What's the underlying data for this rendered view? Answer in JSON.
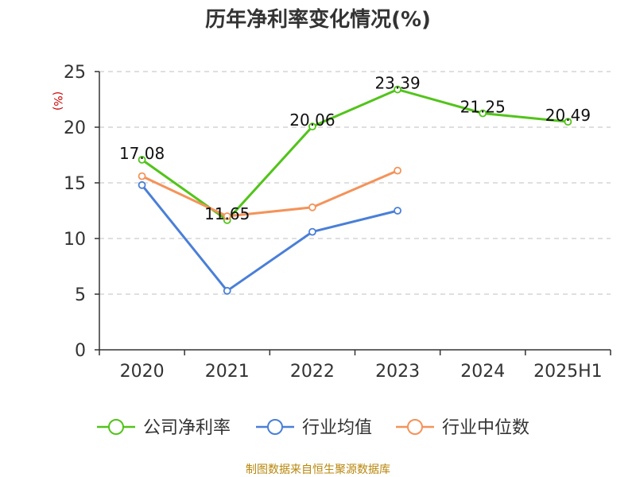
{
  "chart_data": {
    "type": "line",
    "title": "历年净利率变化情况(%)",
    "ylabel": "(%)",
    "categories": [
      "2020",
      "2021",
      "2022",
      "2023",
      "2024",
      "2025H1"
    ],
    "ylim": [
      0,
      25
    ],
    "yticks": [
      0,
      5,
      10,
      15,
      20,
      25
    ],
    "grid": true,
    "legend_position": "bottom",
    "series": [
      {
        "name": "公司净利率",
        "color": "#52c41a",
        "values": [
          17.08,
          11.65,
          20.06,
          23.39,
          21.25,
          20.49
        ],
        "data_labels": [
          "17.08",
          "11.65",
          "20.06",
          "23.39",
          "21.25",
          "20.49"
        ]
      },
      {
        "name": "行业均值",
        "color": "#4a7fd8",
        "values": [
          14.8,
          5.3,
          10.6,
          12.5,
          null,
          null
        ]
      },
      {
        "name": "行业中位数",
        "color": "#f4935a",
        "values": [
          15.6,
          12.0,
          12.8,
          16.1,
          null,
          null
        ]
      }
    ]
  },
  "source_note": "制图数据来自恒生聚源数据库"
}
